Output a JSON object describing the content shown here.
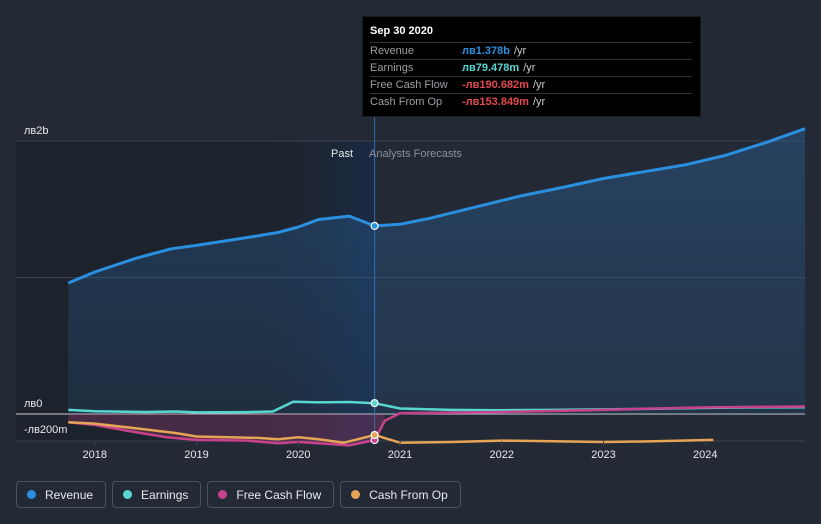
{
  "chart_data": {
    "type": "line",
    "y_axis_labels": [
      "лв2b",
      "лв0",
      "-лв200m"
    ],
    "past_label": "Past",
    "forecast_label": "Analysts Forecasts",
    "x_ticks": [
      "2018",
      "2019",
      "2020",
      "2021",
      "2022",
      "2023",
      "2024"
    ],
    "ylim": [
      -300,
      2100
    ],
    "xlim": [
      2017.55,
      2024.98
    ],
    "divider_x": 2020.75,
    "series": [
      {
        "key": "revenue",
        "name": "Revenue",
        "color": "#2b8fe0",
        "x": [
          2017.74,
          2018.0,
          2018.4,
          2018.75,
          2019.0,
          2019.3,
          2019.6,
          2019.8,
          2020.0,
          2020.2,
          2020.5,
          2020.75,
          2021.0,
          2021.3,
          2021.6,
          2021.9,
          2022.2,
          2022.6,
          2023.0,
          2023.4,
          2023.8,
          2024.2,
          2024.6,
          2024.98
        ],
        "y": [
          960,
          1040,
          1140,
          1210,
          1235,
          1270,
          1305,
          1330,
          1370,
          1425,
          1450,
          1378,
          1390,
          1435,
          1490,
          1545,
          1600,
          1660,
          1725,
          1775,
          1825,
          1895,
          1990,
          2090
        ]
      },
      {
        "key": "earnings",
        "name": "Earnings",
        "color": "#58d6d0",
        "x": [
          2017.74,
          2018.0,
          2018.5,
          2018.8,
          2019.0,
          2019.5,
          2019.75,
          2019.95,
          2020.2,
          2020.5,
          2020.75,
          2021.0,
          2021.5,
          2022.0,
          2022.5,
          2023.0,
          2023.5,
          2024.0,
          2024.5,
          2024.98
        ],
        "y": [
          30,
          20,
          15,
          18,
          12,
          14,
          18,
          90,
          85,
          88,
          79.478,
          40,
          30,
          28,
          30,
          34,
          38,
          45,
          48,
          50
        ]
      },
      {
        "key": "fcf",
        "name": "Free Cash Flow",
        "color": "#c7428c",
        "x": [
          2017.74,
          2018.0,
          2018.3,
          2018.7,
          2019.0,
          2019.5,
          2019.8,
          2020.0,
          2020.2,
          2020.5,
          2020.75,
          2020.85,
          2021.0,
          2021.5,
          2022.0,
          2022.5,
          2023.0,
          2023.5,
          2024.0,
          2024.5,
          2024.98
        ],
        "y": [
          -60,
          -80,
          -120,
          -170,
          -190,
          -195,
          -215,
          -205,
          -215,
          -230,
          -190.682,
          -50,
          5,
          10,
          15,
          22,
          30,
          40,
          48,
          52,
          55
        ]
      },
      {
        "key": "cfo",
        "name": "Cash From Op",
        "color": "#e6a456",
        "x": [
          2017.74,
          2018.0,
          2018.4,
          2018.8,
          2019.0,
          2019.3,
          2019.6,
          2019.8,
          2020.0,
          2020.2,
          2020.45,
          2020.75,
          2021.0,
          2021.5,
          2022.0,
          2022.5,
          2023.0,
          2023.5,
          2024.08
        ],
        "y": [
          -60,
          -70,
          -105,
          -140,
          -165,
          -170,
          -175,
          -185,
          -170,
          -185,
          -210,
          -153.849,
          -210,
          -205,
          -195,
          -200,
          -205,
          -200,
          -190
        ]
      }
    ]
  },
  "tooltip": {
    "date": "Sep 30 2020",
    "rows": [
      {
        "label": "Revenue",
        "value": "лв1.378b",
        "unit": "/yr",
        "color": "#2b8fe0"
      },
      {
        "label": "Earnings",
        "value": "лв79.478m",
        "unit": "/yr",
        "color": "#58d6d0"
      },
      {
        "label": "Free Cash Flow",
        "value": "-лв190.682m",
        "unit": "/yr",
        "color": "#e5484d"
      },
      {
        "label": "Cash From Op",
        "value": "-лв153.849m",
        "unit": "/yr",
        "color": "#e5484d"
      }
    ]
  },
  "legend": [
    {
      "label": "Revenue",
      "color": "#2b8fe0"
    },
    {
      "label": "Earnings",
      "color": "#58d6d0"
    },
    {
      "label": "Free Cash Flow",
      "color": "#c7428c"
    },
    {
      "label": "Cash From Op",
      "color": "#e6a456"
    }
  ]
}
